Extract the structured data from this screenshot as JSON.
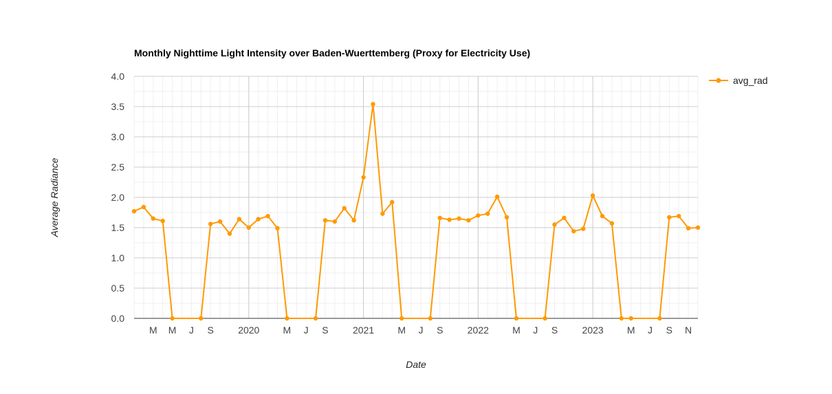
{
  "chart_data": {
    "type": "line",
    "title": "Monthly Nighttime Light Intensity over Baden-Wuerttemberg (Proxy for Electricity Use)",
    "xlabel": "Date",
    "ylabel": "Average Radiance",
    "ylim": [
      0,
      4
    ],
    "y_ticks": [
      "0.0",
      "0.5",
      "1.0",
      "1.5",
      "2.0",
      "2.5",
      "3.0",
      "3.5",
      "4.0"
    ],
    "x_range": [
      "2019-01",
      "2023-12"
    ],
    "x_ticks": [
      {
        "date": "2019-03",
        "label": "M"
      },
      {
        "date": "2019-05",
        "label": "M"
      },
      {
        "date": "2019-07",
        "label": "J"
      },
      {
        "date": "2019-09",
        "label": "S"
      },
      {
        "date": "2020-01",
        "label": "2020"
      },
      {
        "date": "2020-05",
        "label": "M"
      },
      {
        "date": "2020-07",
        "label": "J"
      },
      {
        "date": "2020-09",
        "label": "S"
      },
      {
        "date": "2021-01",
        "label": "2021"
      },
      {
        "date": "2021-05",
        "label": "M"
      },
      {
        "date": "2021-07",
        "label": "J"
      },
      {
        "date": "2021-09",
        "label": "S"
      },
      {
        "date": "2022-01",
        "label": "2022"
      },
      {
        "date": "2022-05",
        "label": "M"
      },
      {
        "date": "2022-07",
        "label": "J"
      },
      {
        "date": "2022-09",
        "label": "S"
      },
      {
        "date": "2023-01",
        "label": "2023"
      },
      {
        "date": "2023-05",
        "label": "M"
      },
      {
        "date": "2023-07",
        "label": "J"
      },
      {
        "date": "2023-09",
        "label": "S"
      },
      {
        "date": "2023-11",
        "label": "N"
      }
    ],
    "legend_position": "right",
    "grid": true,
    "series": [
      {
        "name": "avg_rad",
        "color": "#ff9900",
        "x": [
          "2019-01",
          "2019-02",
          "2019-03",
          "2019-04",
          "2019-05",
          "2019-08",
          "2019-09",
          "2019-10",
          "2019-11",
          "2019-12",
          "2020-01",
          "2020-02",
          "2020-03",
          "2020-04",
          "2020-05",
          "2020-08",
          "2020-09",
          "2020-10",
          "2020-11",
          "2020-12",
          "2021-01",
          "2021-02",
          "2021-03",
          "2021-04",
          "2021-05",
          "2021-08",
          "2021-09",
          "2021-10",
          "2021-11",
          "2021-12",
          "2022-01",
          "2022-02",
          "2022-03",
          "2022-04",
          "2022-05",
          "2022-08",
          "2022-09",
          "2022-10",
          "2022-11",
          "2022-12",
          "2023-01",
          "2023-02",
          "2023-03",
          "2023-04",
          "2023-05",
          "2023-08",
          "2023-09",
          "2023-10",
          "2023-11",
          "2023-12"
        ],
        "values": [
          1.77,
          1.84,
          1.65,
          1.61,
          0.0,
          0.0,
          1.56,
          1.6,
          1.4,
          1.64,
          1.5,
          1.64,
          1.69,
          1.49,
          0.0,
          0.0,
          1.62,
          1.6,
          1.82,
          1.62,
          2.33,
          3.54,
          1.73,
          1.92,
          0.0,
          0.0,
          1.66,
          1.63,
          1.65,
          1.62,
          1.7,
          1.73,
          2.01,
          1.67,
          0.0,
          0.0,
          1.55,
          1.66,
          1.44,
          1.48,
          2.03,
          1.69,
          1.57,
          0.0,
          0.0,
          0.0,
          1.67,
          1.69,
          1.49,
          1.5
        ]
      }
    ]
  }
}
